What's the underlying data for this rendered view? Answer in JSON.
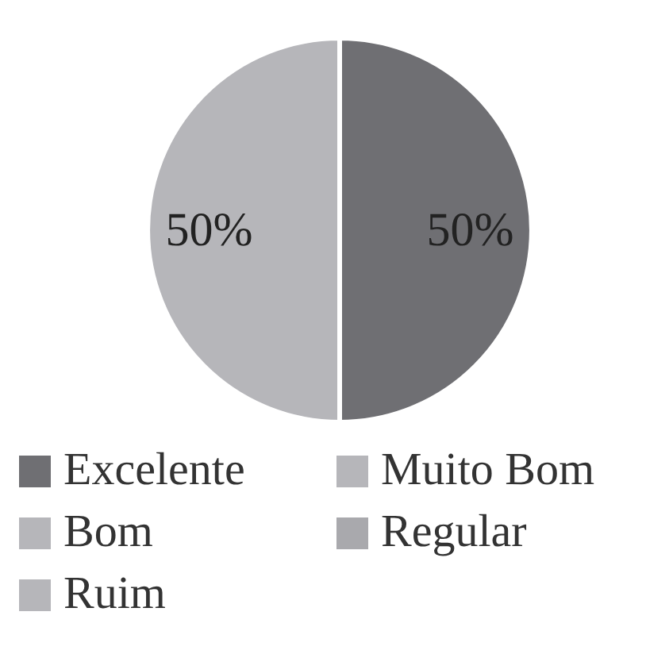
{
  "chart_data": {
    "type": "pie",
    "categories": [
      "Excelente",
      "Muito Bom",
      "Bom",
      "Regular",
      "Ruim"
    ],
    "values": [
      50,
      50,
      0,
      0,
      0
    ],
    "colors": [
      "#6f6f73",
      "#b6b6ba",
      "#b6b6ba",
      "#a9a9ad",
      "#b6b6ba"
    ],
    "value_labels": [
      "50%",
      "50%",
      null,
      null,
      null
    ],
    "legend": "bottom"
  }
}
